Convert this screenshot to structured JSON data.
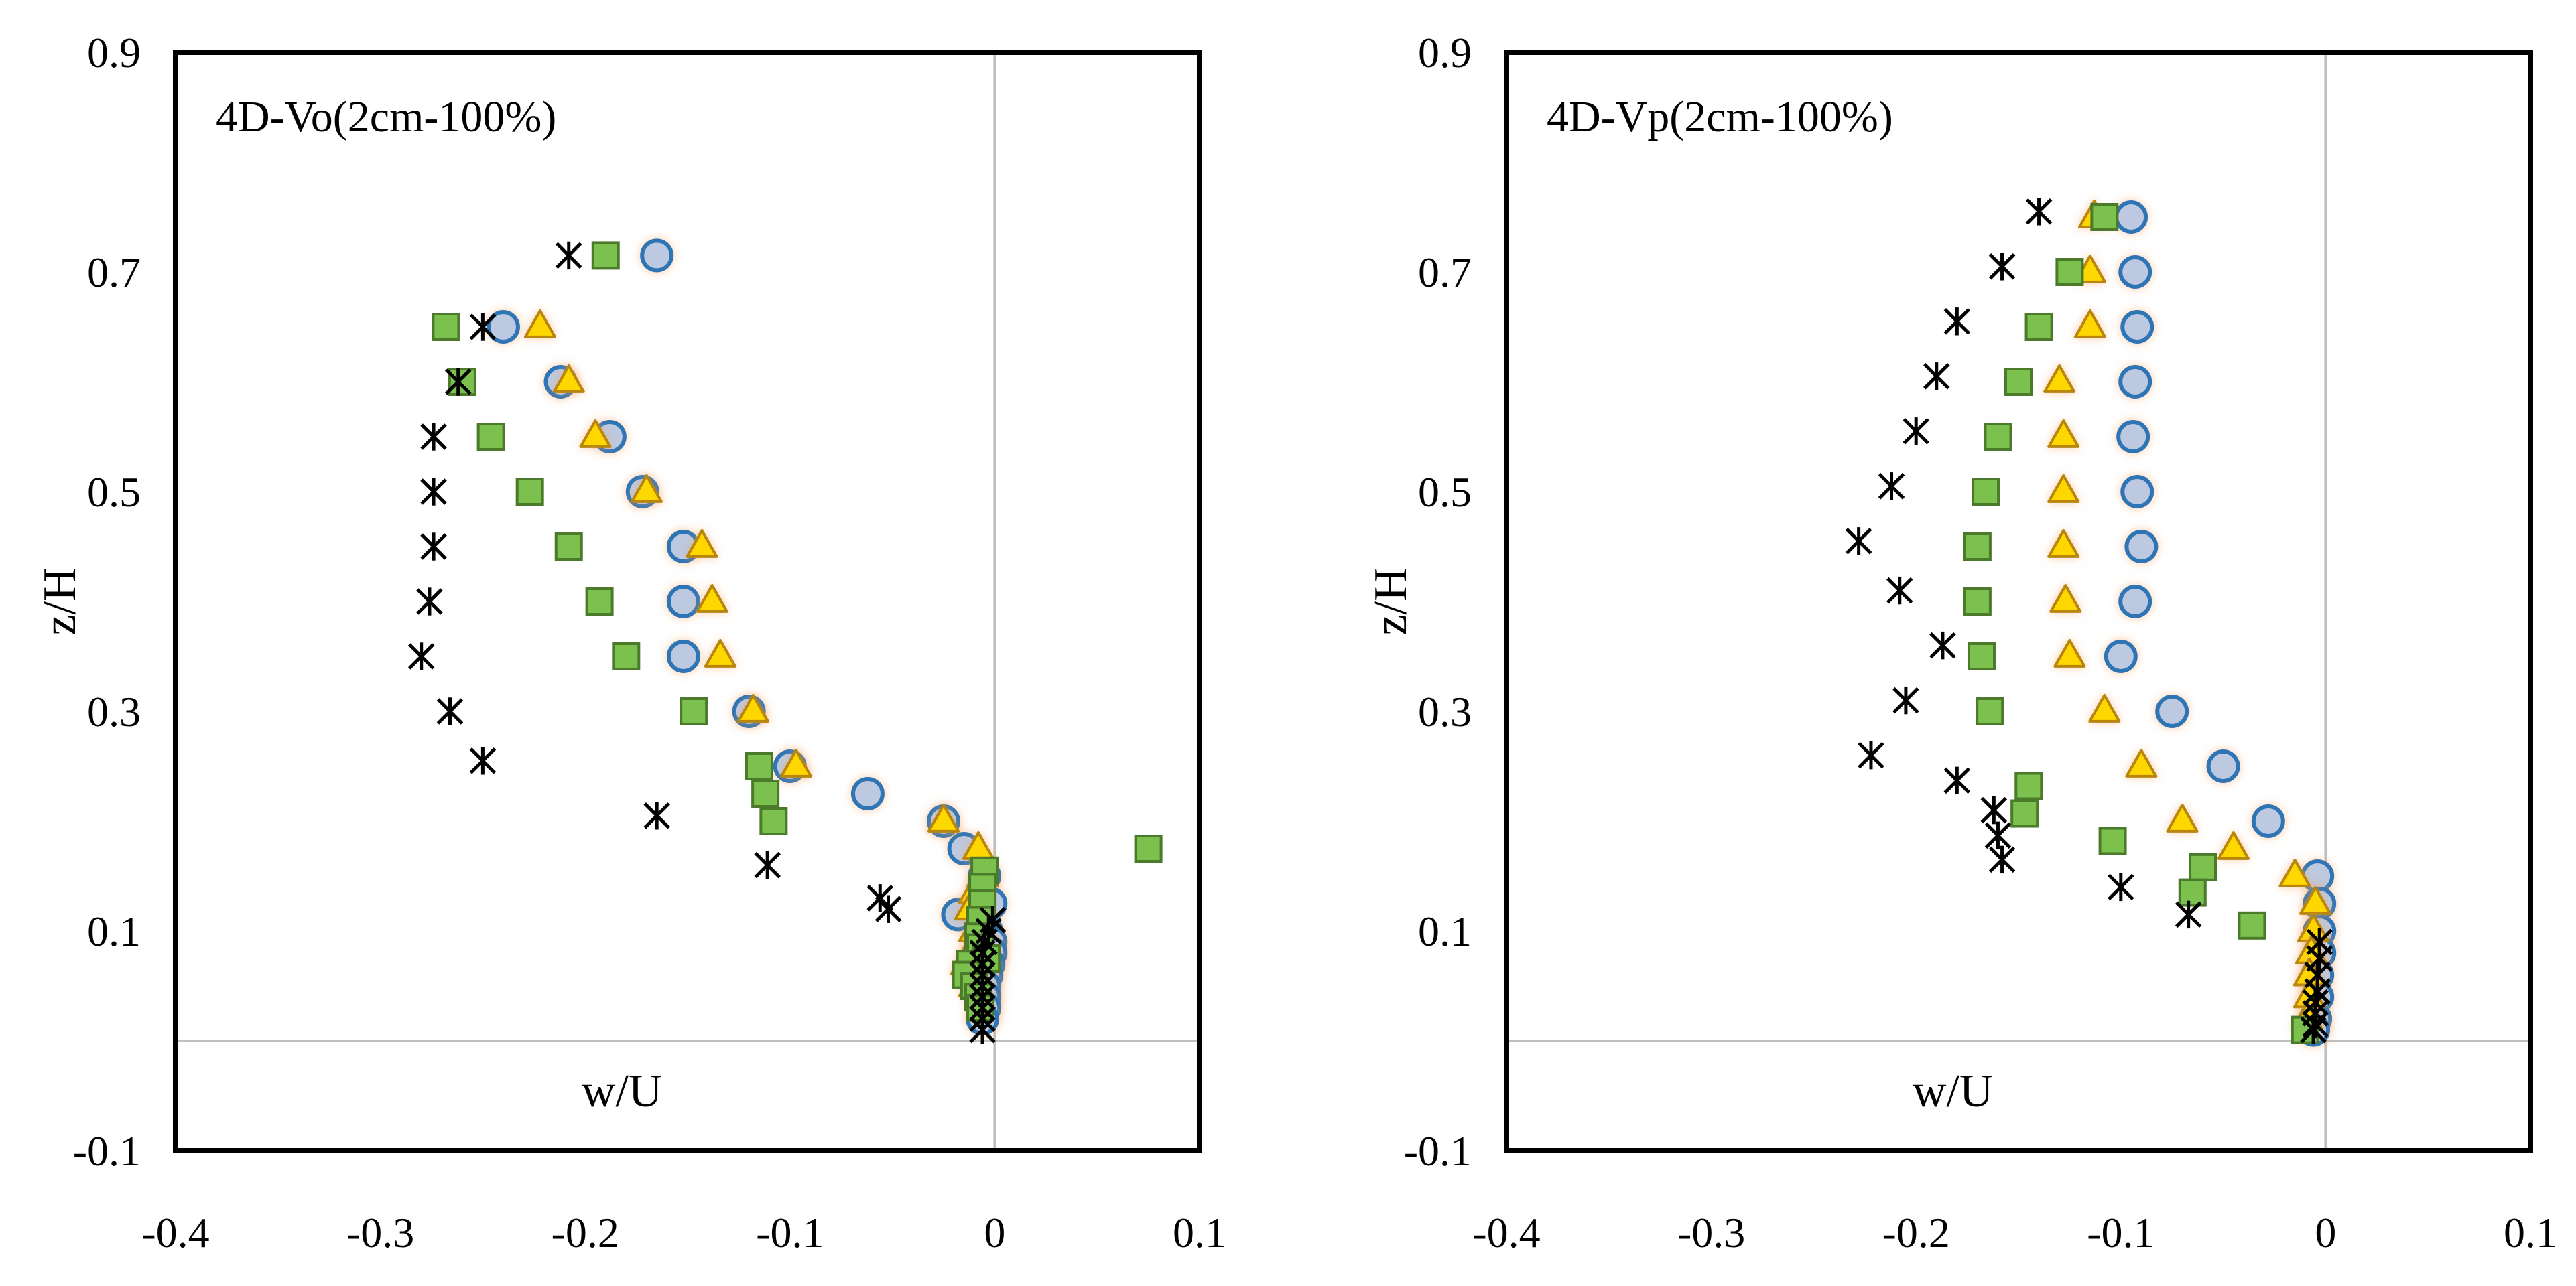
{
  "chart_data": [
    {
      "type": "scatter",
      "title": "4D-Vo(2cm-100%)",
      "xlabel": "w/U",
      "ylabel": "z/H",
      "xlim": [
        -0.4,
        0.1
      ],
      "ylim": [
        -0.1,
        0.9
      ],
      "x_ticks": [
        "-0.4",
        "-0.3",
        "-0.2",
        "-0.1",
        "0",
        "0.1"
      ],
      "y_ticks": [
        "-0.1",
        "0.1",
        "0.3",
        "0.5",
        "0.7",
        "0.9"
      ],
      "grid": false,
      "zero_lines": true,
      "series": [
        {
          "marker": "circle",
          "color": "#bdc9e0",
          "edge": "#2e75b6",
          "points": [
            [
              -0.165,
              0.715
            ],
            [
              -0.24,
              0.65
            ],
            [
              -0.212,
              0.6
            ],
            [
              -0.188,
              0.55
            ],
            [
              -0.172,
              0.5
            ],
            [
              -0.152,
              0.45
            ],
            [
              -0.152,
              0.4
            ],
            [
              -0.152,
              0.35
            ],
            [
              -0.12,
              0.3
            ],
            [
              -0.1,
              0.25
            ],
            [
              -0.062,
              0.225
            ],
            [
              -0.025,
              0.2
            ],
            [
              -0.015,
              0.175
            ],
            [
              -0.005,
              0.15
            ],
            [
              -0.002,
              0.125
            ],
            [
              -0.018,
              0.115
            ],
            [
              -0.004,
              0.1
            ],
            [
              -0.002,
              0.09
            ],
            [
              -0.002,
              0.08
            ],
            [
              -0.003,
              0.07
            ],
            [
              -0.004,
              0.06
            ],
            [
              -0.005,
              0.05
            ],
            [
              -0.005,
              0.04
            ],
            [
              -0.005,
              0.03
            ],
            [
              -0.006,
              0.02
            ]
          ]
        },
        {
          "marker": "triangle",
          "color": "#ffd700",
          "edge": "#b8860b",
          "points": [
            [
              -0.222,
              0.65
            ],
            [
              -0.208,
              0.6
            ],
            [
              -0.195,
              0.55
            ],
            [
              -0.17,
              0.5
            ],
            [
              -0.143,
              0.45
            ],
            [
              -0.138,
              0.4
            ],
            [
              -0.134,
              0.35
            ],
            [
              -0.118,
              0.3
            ],
            [
              -0.097,
              0.25
            ],
            [
              -0.025,
              0.2
            ],
            [
              -0.008,
              0.175
            ],
            [
              -0.006,
              0.15
            ],
            [
              -0.01,
              0.135
            ],
            [
              -0.012,
              0.12
            ],
            [
              -0.01,
              0.1
            ],
            [
              -0.008,
              0.09
            ],
            [
              -0.012,
              0.08
            ],
            [
              -0.014,
              0.07
            ],
            [
              -0.012,
              0.06
            ],
            [
              -0.01,
              0.05
            ]
          ]
        },
        {
          "marker": "square",
          "color": "#7cc14e",
          "edge": "#4a7a2a",
          "points": [
            [
              -0.19,
              0.715
            ],
            [
              -0.268,
              0.65
            ],
            [
              -0.26,
              0.6
            ],
            [
              -0.246,
              0.55
            ],
            [
              -0.227,
              0.5
            ],
            [
              -0.208,
              0.45
            ],
            [
              -0.193,
              0.4
            ],
            [
              -0.18,
              0.35
            ],
            [
              -0.147,
              0.3
            ],
            [
              -0.115,
              0.25
            ],
            [
              -0.112,
              0.225
            ],
            [
              -0.108,
              0.2
            ],
            [
              0.075,
              0.175
            ],
            [
              -0.005,
              0.155
            ],
            [
              -0.006,
              0.14
            ],
            [
              -0.006,
              0.125
            ],
            [
              -0.007,
              0.11
            ],
            [
              -0.008,
              0.095
            ],
            [
              -0.007,
              0.085
            ],
            [
              -0.004,
              0.075
            ],
            [
              -0.012,
              0.07
            ],
            [
              -0.014,
              0.06
            ],
            [
              -0.01,
              0.05
            ],
            [
              -0.008,
              0.04
            ],
            [
              -0.007,
              0.03
            ]
          ]
        },
        {
          "marker": "asterisk",
          "color": "#000000",
          "edge": "#000000",
          "points": [
            [
              -0.208,
              0.715
            ],
            [
              -0.25,
              0.65
            ],
            [
              -0.262,
              0.6
            ],
            [
              -0.274,
              0.55
            ],
            [
              -0.274,
              0.5
            ],
            [
              -0.274,
              0.45
            ],
            [
              -0.276,
              0.4
            ],
            [
              -0.28,
              0.35
            ],
            [
              -0.266,
              0.3
            ],
            [
              -0.25,
              0.255
            ],
            [
              -0.165,
              0.205
            ],
            [
              -0.111,
              0.16
            ],
            [
              -0.056,
              0.13
            ],
            [
              -0.052,
              0.12
            ],
            [
              -0.001,
              0.11
            ],
            [
              -0.003,
              0.1
            ],
            [
              -0.005,
              0.09
            ],
            [
              -0.006,
              0.08
            ],
            [
              -0.006,
              0.07
            ],
            [
              -0.006,
              0.06
            ],
            [
              -0.006,
              0.05
            ],
            [
              -0.006,
              0.04
            ],
            [
              -0.006,
              0.03
            ],
            [
              -0.006,
              0.02
            ],
            [
              -0.006,
              0.01
            ]
          ]
        }
      ]
    },
    {
      "type": "scatter",
      "title": "4D-Vp(2cm-100%)",
      "xlabel": "w/U",
      "ylabel": "z/H",
      "xlim": [
        -0.4,
        0.1
      ],
      "ylim": [
        -0.1,
        0.9
      ],
      "x_ticks": [
        "-0.4",
        "-0.3",
        "-0.2",
        "-0.1",
        "0",
        "0.1"
      ],
      "y_ticks": [
        "-0.1",
        "0.1",
        "0.3",
        "0.5",
        "0.7",
        "0.9"
      ],
      "grid": false,
      "zero_lines": true,
      "series": [
        {
          "marker": "circle",
          "color": "#bdc9e0",
          "edge": "#2e75b6",
          "points": [
            [
              -0.095,
              0.75
            ],
            [
              -0.093,
              0.7
            ],
            [
              -0.092,
              0.65
            ],
            [
              -0.093,
              0.6
            ],
            [
              -0.094,
              0.55
            ],
            [
              -0.092,
              0.5
            ],
            [
              -0.09,
              0.45
            ],
            [
              -0.093,
              0.4
            ],
            [
              -0.1,
              0.35
            ],
            [
              -0.075,
              0.3
            ],
            [
              -0.05,
              0.25
            ],
            [
              -0.028,
              0.2
            ],
            [
              -0.004,
              0.15
            ],
            [
              -0.003,
              0.125
            ],
            [
              -0.003,
              0.1
            ],
            [
              -0.003,
              0.08
            ],
            [
              -0.004,
              0.06
            ],
            [
              -0.004,
              0.04
            ],
            [
              -0.005,
              0.02
            ],
            [
              -0.006,
              0.01
            ]
          ]
        },
        {
          "marker": "triangle",
          "color": "#ffd700",
          "edge": "#b8860b",
          "points": [
            [
              -0.113,
              0.75
            ],
            [
              -0.115,
              0.7
            ],
            [
              -0.115,
              0.65
            ],
            [
              -0.13,
              0.6
            ],
            [
              -0.128,
              0.55
            ],
            [
              -0.128,
              0.5
            ],
            [
              -0.128,
              0.45
            ],
            [
              -0.127,
              0.4
            ],
            [
              -0.125,
              0.35
            ],
            [
              -0.108,
              0.3
            ],
            [
              -0.09,
              0.25
            ],
            [
              -0.07,
              0.2
            ],
            [
              -0.045,
              0.175
            ],
            [
              -0.015,
              0.15
            ],
            [
              -0.005,
              0.125
            ],
            [
              -0.006,
              0.1
            ],
            [
              -0.007,
              0.08
            ],
            [
              -0.008,
              0.06
            ],
            [
              -0.008,
              0.04
            ],
            [
              -0.009,
              0.02
            ]
          ]
        },
        {
          "marker": "square",
          "color": "#7cc14e",
          "edge": "#4a7a2a",
          "points": [
            [
              -0.108,
              0.75
            ],
            [
              -0.125,
              0.7
            ],
            [
              -0.14,
              0.65
            ],
            [
              -0.15,
              0.6
            ],
            [
              -0.16,
              0.55
            ],
            [
              -0.166,
              0.5
            ],
            [
              -0.17,
              0.45
            ],
            [
              -0.17,
              0.4
            ],
            [
              -0.168,
              0.35
            ],
            [
              -0.164,
              0.3
            ],
            [
              -0.145,
              0.232
            ],
            [
              -0.147,
              0.207
            ],
            [
              -0.104,
              0.182
            ],
            [
              -0.06,
              0.158
            ],
            [
              -0.065,
              0.135
            ],
            [
              -0.036,
              0.105
            ],
            [
              -0.01,
              0.01
            ]
          ]
        },
        {
          "marker": "asterisk",
          "color": "#000000",
          "edge": "#000000",
          "points": [
            [
              -0.14,
              0.755
            ],
            [
              -0.158,
              0.705
            ],
            [
              -0.18,
              0.655
            ],
            [
              -0.19,
              0.605
            ],
            [
              -0.2,
              0.555
            ],
            [
              -0.212,
              0.505
            ],
            [
              -0.228,
              0.455
            ],
            [
              -0.208,
              0.41
            ],
            [
              -0.187,
              0.36
            ],
            [
              -0.205,
              0.31
            ],
            [
              -0.222,
              0.26
            ],
            [
              -0.18,
              0.237
            ],
            [
              -0.162,
              0.21
            ],
            [
              -0.16,
              0.187
            ],
            [
              -0.158,
              0.165
            ],
            [
              -0.1,
              0.14
            ],
            [
              -0.067,
              0.115
            ],
            [
              -0.003,
              0.09
            ],
            [
              -0.003,
              0.075
            ],
            [
              -0.004,
              0.06
            ],
            [
              -0.004,
              0.045
            ],
            [
              -0.005,
              0.035
            ],
            [
              -0.005,
              0.025
            ],
            [
              -0.005,
              0.015
            ],
            [
              -0.006,
              0.01
            ]
          ]
        }
      ]
    }
  ]
}
